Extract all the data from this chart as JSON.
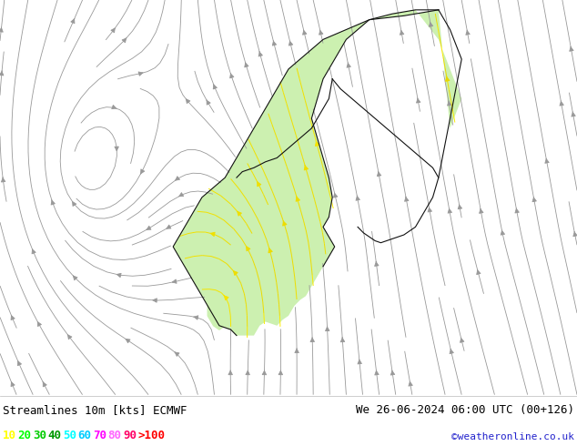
{
  "title_left": "Streamlines 10m [kts] ECMWF",
  "title_right": "We 26-06-2024 06:00 UTC (00+126)",
  "credit": "©weatheronline.co.uk",
  "legend_values": [
    "10",
    "20",
    "30",
    "40",
    "50",
    "60",
    "70",
    "80",
    "90",
    ">100"
  ],
  "legend_colors": [
    "#ffff00",
    "#00ff00",
    "#00cc00",
    "#009900",
    "#00ffff",
    "#00ccff",
    "#ff00ff",
    "#ff66ff",
    "#ff0066",
    "#ff0000"
  ],
  "background_color": "#ffffff",
  "land_color": "#ccf0b0",
  "sea_color": "#f0f0f0",
  "border_color": "#111111",
  "text_color": "#000000",
  "font_size_title": 9,
  "font_size_legend": 9,
  "fig_width": 6.34,
  "fig_height": 4.9,
  "dpi": 100
}
